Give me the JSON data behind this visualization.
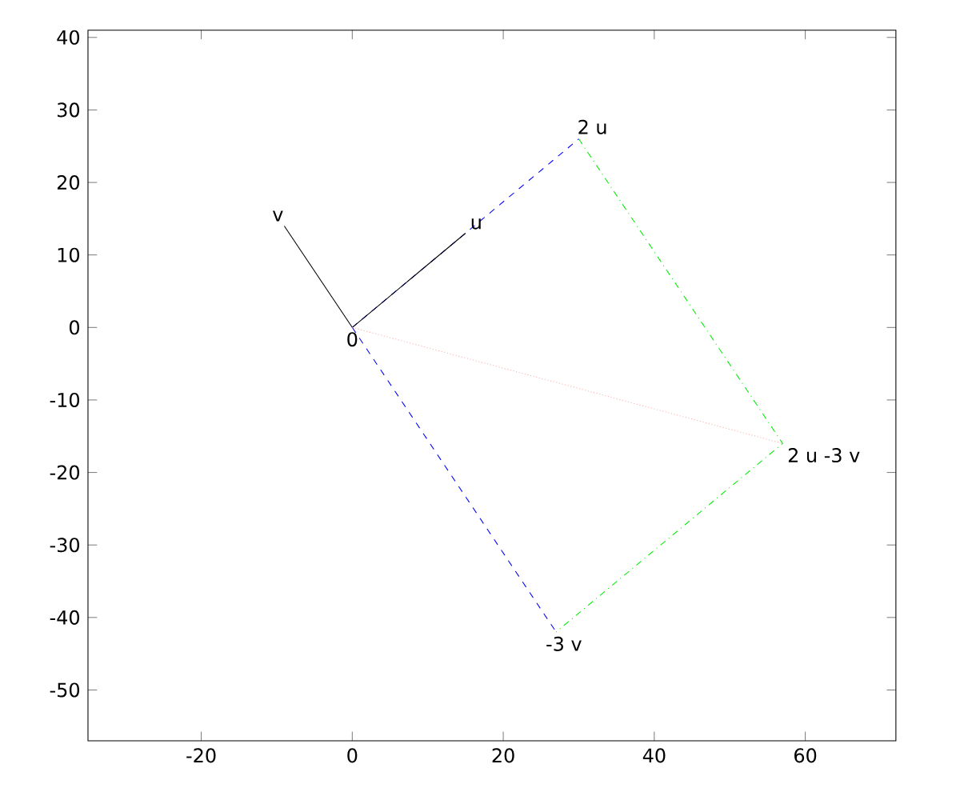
{
  "chart_data": {
    "type": "line",
    "xlim": [
      -35,
      72
    ],
    "ylim": [
      -57,
      41
    ],
    "xticks": [
      -20,
      0,
      20,
      40,
      60
    ],
    "yticks": [
      -50,
      -40,
      -30,
      -20,
      -10,
      0,
      10,
      20,
      30,
      40
    ],
    "marker": "none",
    "series": [
      {
        "color": "#0000ff",
        "line_style": "dashed",
        "x": [
          0,
          30,
          null,
          0,
          27
        ],
        "values": [
          0,
          26,
          null,
          0,
          -42
        ]
      },
      {
        "color": "#000000",
        "line_style": "solid",
        "x": [
          0,
          15
        ],
        "values": [
          0,
          13
        ]
      },
      {
        "color": "#000000",
        "line_style": "solid",
        "x": [
          0,
          -9
        ],
        "values": [
          0,
          14
        ]
      },
      {
        "color": "#00ee00",
        "line_style": "dashdot",
        "x": [
          30,
          57,
          27
        ],
        "values": [
          26,
          -16,
          -42
        ]
      },
      {
        "color": "#ffaaaa",
        "line_style": "dotted",
        "x": [
          0,
          57
        ],
        "values": [
          0,
          -16
        ]
      }
    ],
    "annotations": [
      {
        "text": "v",
        "x": -9,
        "y": 14
      },
      {
        "text": "u",
        "x": 15,
        "y": 13
      },
      {
        "text": "2 u",
        "x": 30,
        "y": 26
      },
      {
        "text": "0",
        "x": 0,
        "y": 0
      },
      {
        "text": "2 u -3 v",
        "x": 57,
        "y": -16
      },
      {
        "text": "-3 v",
        "x": 27,
        "y": -42
      }
    ]
  }
}
